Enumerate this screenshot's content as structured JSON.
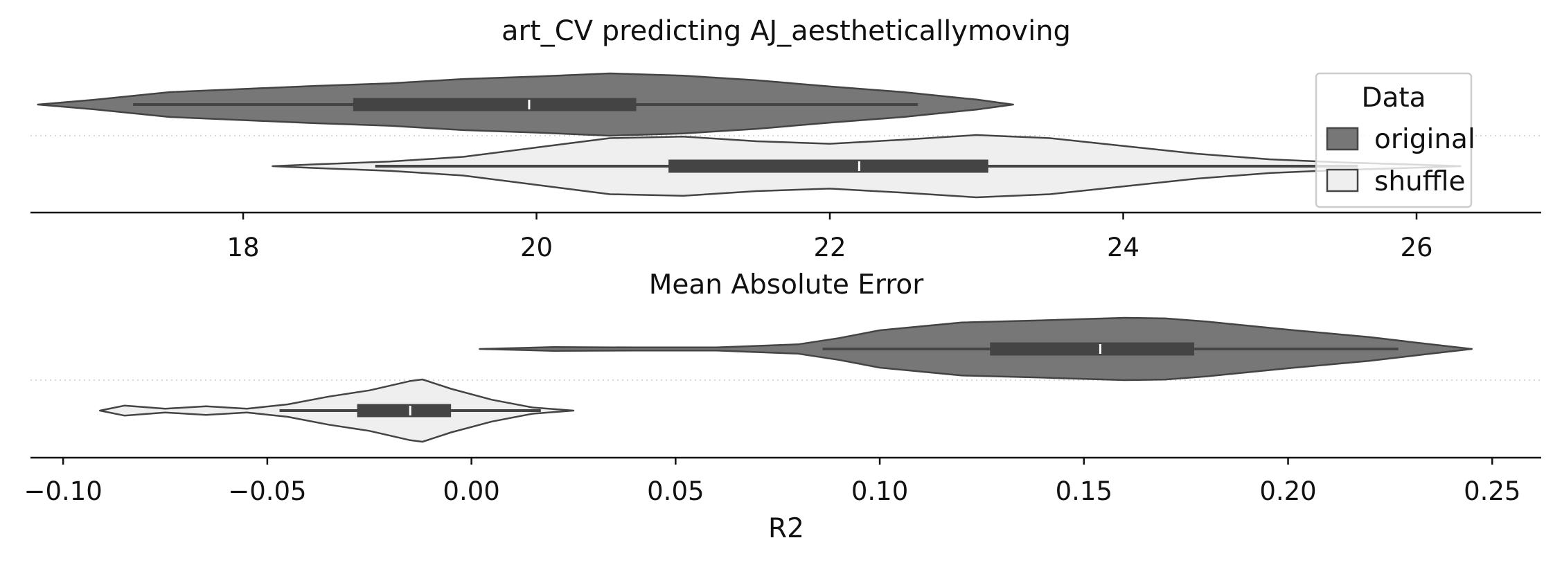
{
  "chart_data": [
    {
      "type": "violin",
      "title": "art_CV predicting AJ_aestheticallymoving",
      "xlabel": "Mean Absolute Error",
      "xlim": [
        16.55,
        26.85
      ],
      "xticks": [
        18,
        20,
        22,
        24,
        26
      ],
      "xtick_labels": [
        "18",
        "20",
        "22",
        "24",
        "26"
      ],
      "series": [
        {
          "name": "original",
          "color": "#777777",
          "kde_x": [
            16.6,
            17.0,
            17.5,
            18.0,
            18.5,
            19.0,
            19.5,
            20.0,
            20.5,
            21.0,
            21.5,
            22.0,
            22.5,
            23.0,
            23.25
          ],
          "kde_density": [
            0.0,
            0.16,
            0.4,
            0.5,
            0.6,
            0.68,
            0.82,
            0.9,
            1.0,
            0.93,
            0.78,
            0.58,
            0.4,
            0.16,
            0.0
          ],
          "whisker": [
            17.25,
            22.6
          ],
          "q1": 18.75,
          "median": 19.95,
          "q3": 20.68
        },
        {
          "name": "shuffle",
          "color": "#efefef",
          "kde_x": [
            18.2,
            18.5,
            19.0,
            19.5,
            20.0,
            20.5,
            21.0,
            21.5,
            22.0,
            22.5,
            23.0,
            23.5,
            24.0,
            24.5,
            25.0,
            25.5,
            26.0,
            26.3
          ],
          "kde_density": [
            0.0,
            0.06,
            0.15,
            0.3,
            0.6,
            0.9,
            0.95,
            0.8,
            0.72,
            0.85,
            1.0,
            0.9,
            0.65,
            0.4,
            0.22,
            0.12,
            0.05,
            0.0
          ],
          "whisker": [
            18.9,
            25.6
          ],
          "q1": 20.9,
          "median": 22.2,
          "q3": 23.08
        }
      ],
      "legend": {
        "title": "Data",
        "entries": [
          "original",
          "shuffle"
        ],
        "placement": "right"
      },
      "ygrid": "dotted separator"
    },
    {
      "type": "violin",
      "title": "",
      "xlabel": "R2",
      "xlim": [
        -0.108,
        0.262
      ],
      "xticks": [
        -0.1,
        -0.05,
        0.0,
        0.05,
        0.1,
        0.15,
        0.2,
        0.25
      ],
      "xtick_labels": [
        "−0.10",
        "−0.05",
        "0.00",
        "0.05",
        "0.10",
        "0.15",
        "0.20",
        "0.25"
      ],
      "series": [
        {
          "name": "original",
          "color": "#777777",
          "kde_x": [
            0.002,
            0.02,
            0.04,
            0.06,
            0.08,
            0.09,
            0.1,
            0.12,
            0.14,
            0.16,
            0.17,
            0.18,
            0.2,
            0.22,
            0.235,
            0.245
          ],
          "kde_density": [
            0.0,
            0.06,
            0.05,
            0.05,
            0.15,
            0.35,
            0.6,
            0.85,
            0.92,
            1.0,
            0.98,
            0.88,
            0.62,
            0.38,
            0.15,
            0.0
          ],
          "whisker": [
            0.086,
            0.227
          ],
          "q1": 0.127,
          "median": 0.154,
          "q3": 0.177
        },
        {
          "name": "shuffle",
          "color": "#efefef",
          "kde_x": [
            -0.091,
            -0.085,
            -0.075,
            -0.065,
            -0.055,
            -0.045,
            -0.035,
            -0.025,
            -0.015,
            -0.012,
            -0.005,
            0.005,
            0.015,
            0.025
          ],
          "kde_density": [
            0.0,
            0.16,
            0.06,
            0.14,
            0.06,
            0.2,
            0.45,
            0.65,
            0.95,
            1.0,
            0.7,
            0.35,
            0.1,
            0.0
          ],
          "whisker": [
            -0.047,
            0.017
          ],
          "q1": -0.028,
          "median": -0.015,
          "q3": -0.005
        }
      ],
      "ygrid": "dotted separator"
    }
  ]
}
